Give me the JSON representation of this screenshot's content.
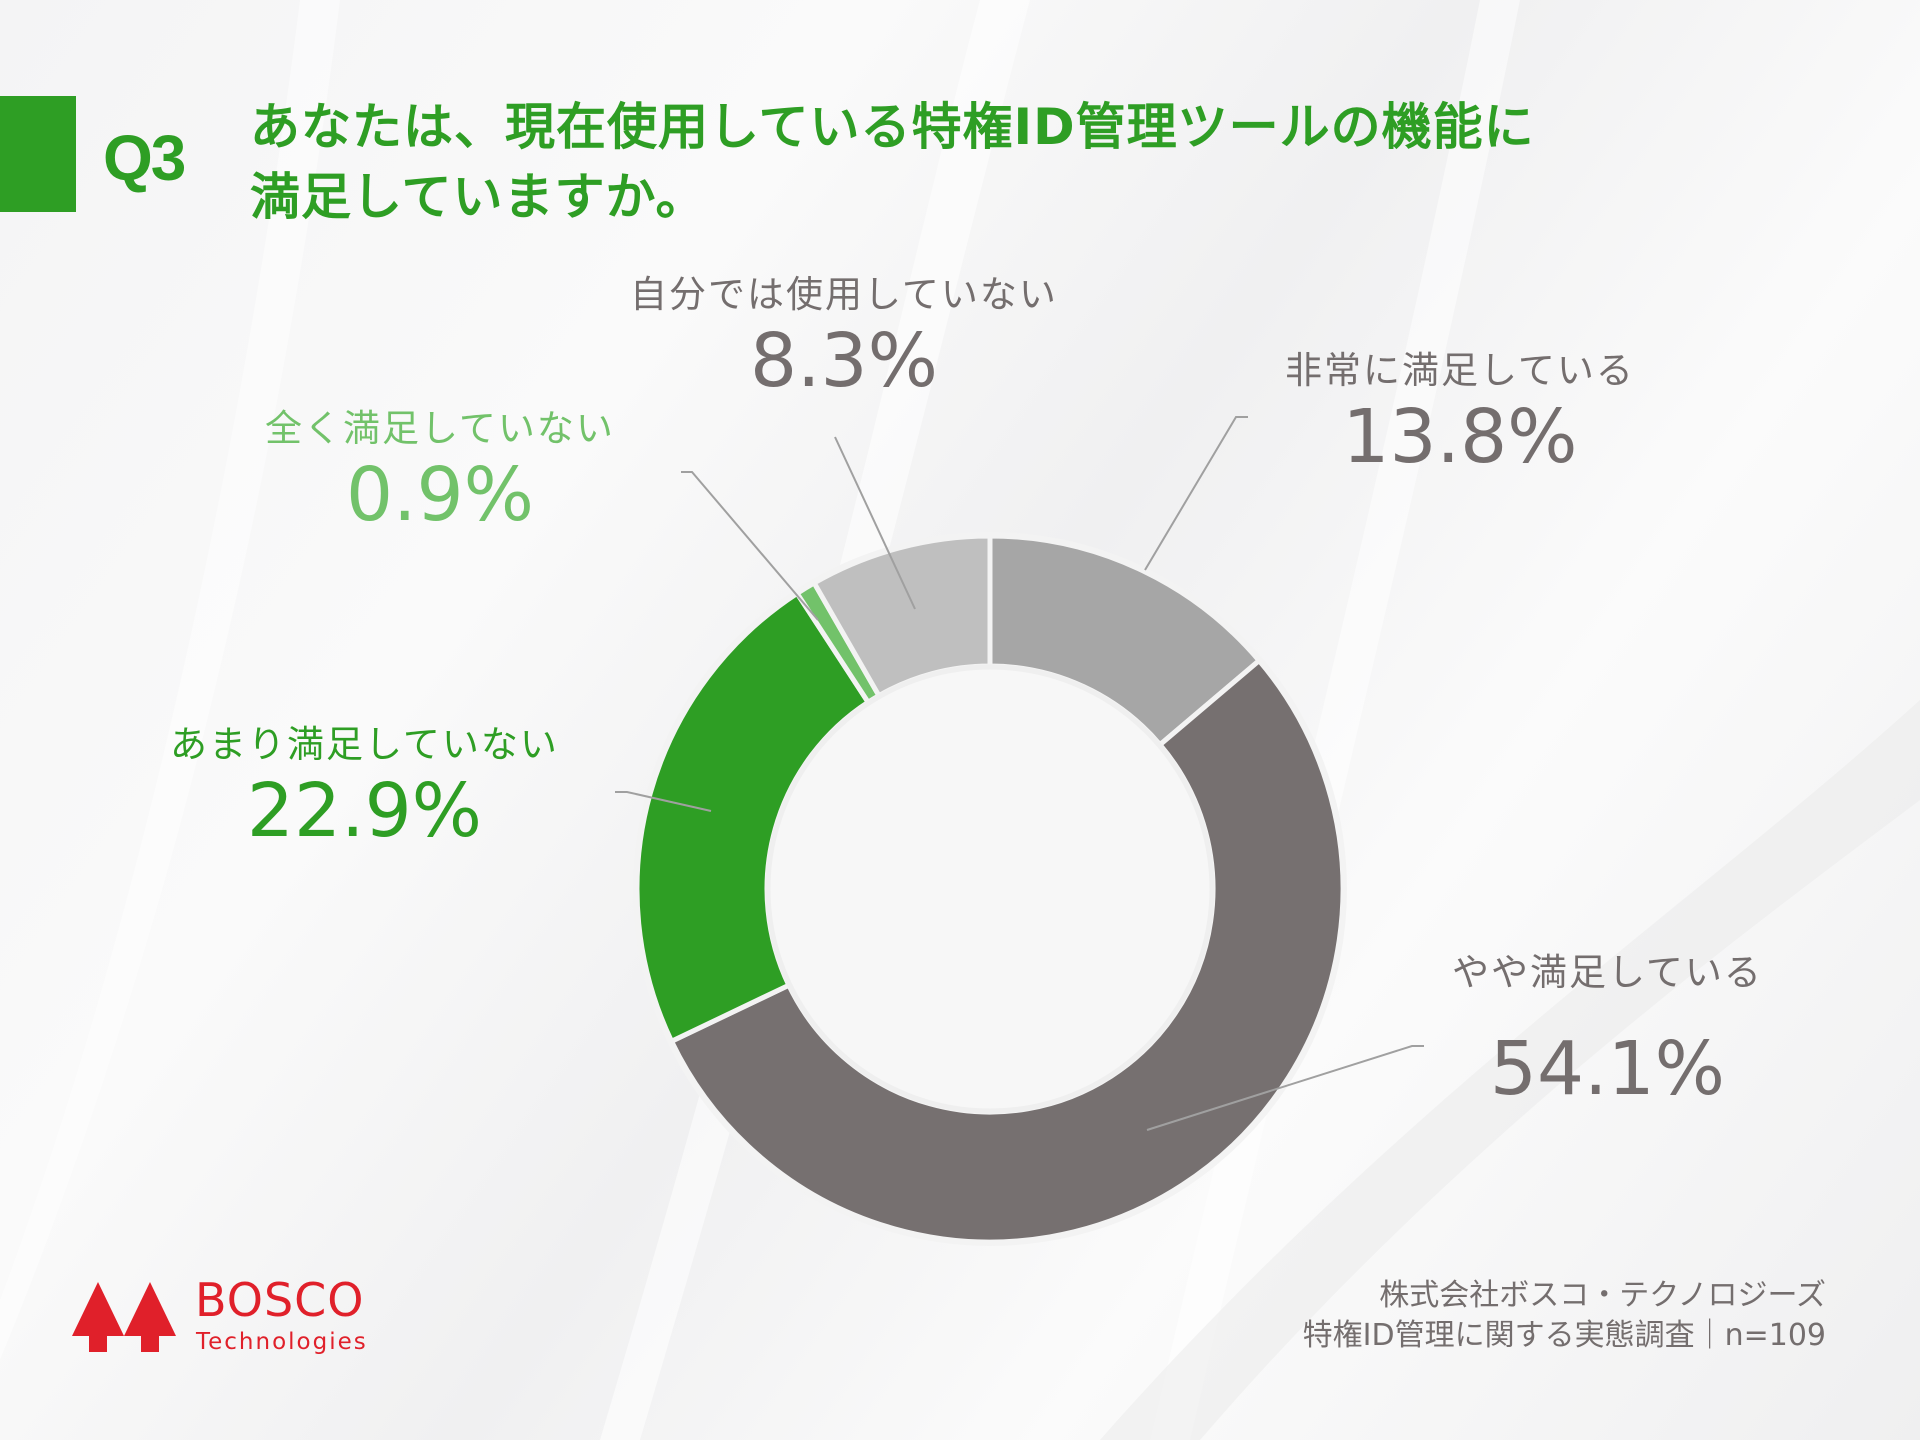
{
  "header": {
    "q_number": "Q3",
    "question_line1": "あなたは、現在使用している特権ID管理ツールの機能に",
    "question_line2": "満足していますか。"
  },
  "colors": {
    "brand_green": "#2e9e24",
    "light_green": "#72c26a",
    "dark_gray": "#767070",
    "mid_gray": "#a6a6a6",
    "light_gray": "#bfbfbf",
    "label_gray": "#746e6e",
    "leader_line": "#a0a0a0",
    "logo_red": "#e0202a"
  },
  "labels": {
    "very_satisfied": {
      "category": "非常に満足している",
      "value": "13.8%"
    },
    "somewhat_satisfied": {
      "category": "やや満足している",
      "value": "54.1%"
    },
    "not_very_satisfied": {
      "category": "あまり満足していない",
      "value": "22.9%"
    },
    "not_at_all_satisfied": {
      "category": "全く満足していない",
      "value": "0.9%"
    },
    "not_using": {
      "category": "自分では使用していない",
      "value": "8.3%"
    }
  },
  "chart_data": {
    "type": "pie",
    "subtype": "donut",
    "title": "あなたは、現在使用している特権ID管理ツールの機能に満足していますか。",
    "categories": [
      "非常に満足している",
      "やや満足している",
      "あまり満足していない",
      "全く満足していない",
      "自分では使用していない"
    ],
    "values": [
      13.8,
      54.1,
      22.9,
      0.9,
      8.3
    ],
    "unit": "%",
    "colors": [
      "#a6a6a6",
      "#767070",
      "#2e9e24",
      "#72c26a",
      "#bfbfbf"
    ],
    "start_angle": "12 o'clock, clockwise",
    "legend": "none (data labels with leader lines)",
    "n": 109
  },
  "footer": {
    "logo_name": "BOSCO",
    "logo_sub": "Technologies",
    "source_line1": "株式会社ボスコ・テクノロジーズ",
    "source_line2": "特権ID管理に関する実態調査｜n=109"
  }
}
